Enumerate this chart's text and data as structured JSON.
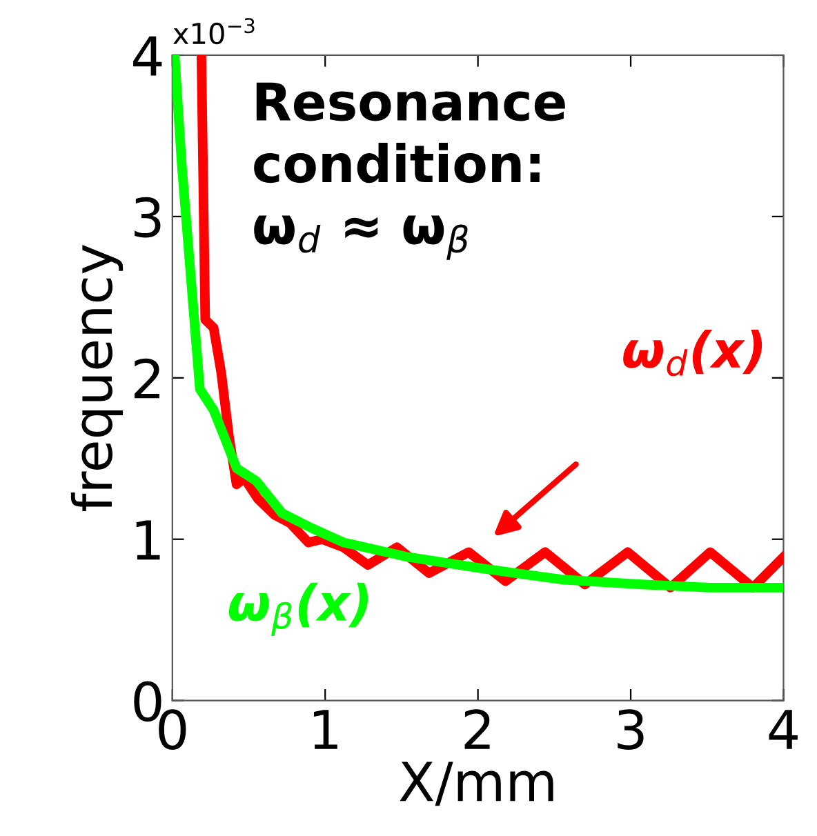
{
  "chart_data": {
    "type": "line",
    "xlabel": "X/mm",
    "ylabel": "frequency",
    "xlim": [
      0,
      4
    ],
    "ylim": [
      0,
      4
    ],
    "xticks": [
      0,
      1,
      2,
      3,
      4
    ],
    "yticks": [
      0,
      1,
      2,
      3,
      4
    ],
    "grid": false,
    "marker": "none",
    "line_style": "solid",
    "annotations": [
      "x10$^{−3}$",
      "Resonance\ncondition:\nω$_{d}$ ≈ ω$_{β}$"
    ],
    "series": [
      {
        "name": "ω$_{d}$(x)",
        "color": "#ff0000",
        "x": [
          0.19,
          0.215,
          0.27,
          0.32,
          0.37,
          0.42,
          0.47,
          0.56,
          0.67,
          0.77,
          0.89,
          0.98,
          1.12,
          1.28,
          1.47,
          1.68,
          1.94,
          2.18,
          2.44,
          2.7,
          2.98,
          3.26,
          3.52,
          3.8,
          4.0
        ],
        "values": [
          4.0,
          2.36,
          2.31,
          2.03,
          1.64,
          1.34,
          1.38,
          1.25,
          1.15,
          1.1,
          0.98,
          1.0,
          0.95,
          0.84,
          0.95,
          0.79,
          0.92,
          0.74,
          0.92,
          0.72,
          0.92,
          0.7,
          0.92,
          0.7,
          0.89
        ]
      },
      {
        "name": "ω$_{β}$(x)",
        "color": "#00ff00",
        "x": [
          0.015,
          0.06,
          0.11,
          0.18,
          0.27,
          0.35,
          0.42,
          0.55,
          0.72,
          0.91,
          1.12,
          1.54,
          2.02,
          2.55,
          3.07,
          3.52,
          4.0
        ],
        "values": [
          4.0,
          3.34,
          2.75,
          1.93,
          1.8,
          1.61,
          1.44,
          1.36,
          1.16,
          1.07,
          0.98,
          0.89,
          0.82,
          0.75,
          0.72,
          0.7,
          0.7
        ]
      }
    ]
  }
}
